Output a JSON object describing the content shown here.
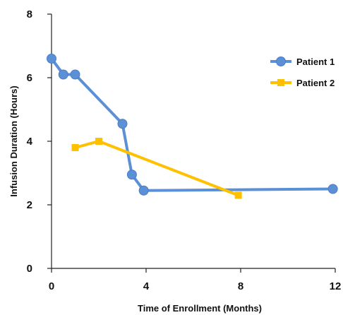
{
  "chart_data": {
    "type": "line",
    "xlabel": "Time of Enrollment (Months)",
    "ylabel": "Infusion Duration (Hours)",
    "xlim": [
      0,
      12
    ],
    "ylim": [
      0,
      8
    ],
    "xticks": [
      0,
      4,
      8,
      12
    ],
    "yticks": [
      0,
      2,
      4,
      6,
      8
    ],
    "grid": false,
    "legend_position": "right",
    "series": [
      {
        "name": "Patient 1",
        "color": "#5b8fd6",
        "marker": "circle",
        "x": [
          0,
          0.5,
          1,
          3,
          3.4,
          3.9,
          11.9
        ],
        "y": [
          6.6,
          6.1,
          6.1,
          4.55,
          2.95,
          2.45,
          2.5
        ]
      },
      {
        "name": "Patient 2",
        "color": "#ffc000",
        "marker": "square",
        "x": [
          1,
          2,
          7.9
        ],
        "y": [
          3.8,
          4.0,
          2.3
        ]
      }
    ]
  }
}
